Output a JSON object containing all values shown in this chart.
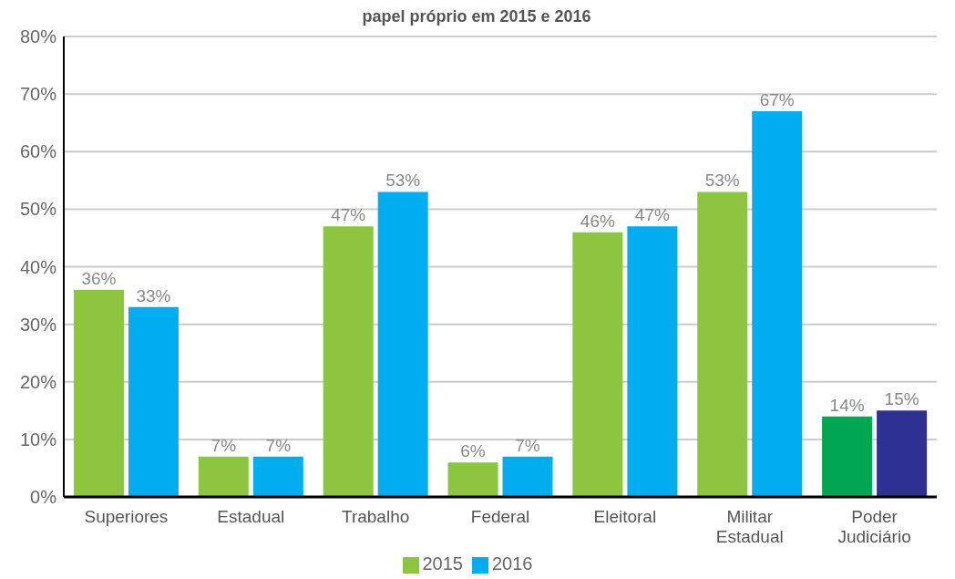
{
  "chart_data": {
    "type": "bar",
    "title": "papel próprio em 2015 e 2016",
    "categories": [
      "Superiores",
      "Estadual",
      "Trabalho",
      "Federal",
      "Eleitoral",
      "Militar Estadual",
      "Poder Judiciário"
    ],
    "series": [
      {
        "name": "2015",
        "color": "#8cc63f",
        "colors": [
          "#8cc63f",
          "#8cc63f",
          "#8cc63f",
          "#8cc63f",
          "#8cc63f",
          "#8cc63f",
          "#00a651"
        ],
        "values": [
          36,
          7,
          47,
          6,
          46,
          53,
          14
        ],
        "value_labels": [
          "36%",
          "7%",
          "47%",
          "6%",
          "46%",
          "53%",
          "14%"
        ]
      },
      {
        "name": "2016",
        "color": "#00aeef",
        "colors": [
          "#00aeef",
          "#00aeef",
          "#00aeef",
          "#00aeef",
          "#00aeef",
          "#00aeef",
          "#2e3192"
        ],
        "values": [
          33,
          7,
          53,
          7,
          47,
          67,
          15
        ],
        "value_labels": [
          "33%",
          "7%",
          "53%",
          "7%",
          "47%",
          "67%",
          "15%"
        ]
      }
    ],
    "ylim": [
      0,
      80
    ],
    "yticks": [
      {
        "value": 0,
        "label": "0%"
      },
      {
        "value": 10,
        "label": "10%"
      },
      {
        "value": 20,
        "label": "20%"
      },
      {
        "value": 30,
        "label": "30%"
      },
      {
        "value": 40,
        "label": "40%"
      },
      {
        "value": 50,
        "label": "50%"
      },
      {
        "value": 60,
        "label": "60%"
      },
      {
        "value": 70,
        "label": "70%"
      },
      {
        "value": 80,
        "label": "80%"
      }
    ],
    "grid": "y",
    "legend": "bottom"
  }
}
